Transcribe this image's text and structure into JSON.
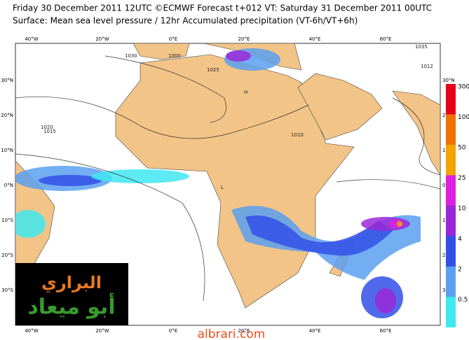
{
  "header": {
    "line1": "Friday 30 December 2011 12UTC ©ECMWF Forecast t+012 VT: Saturday 31 December 2011 00UTC",
    "line2": "Surface: Mean sea level pressure / 12hr Accumulated precipitation (VT-6h/VT+6h)"
  },
  "map": {
    "lon_labels": [
      "40°W",
      "20°W",
      "0°E",
      "20°E",
      "40°E",
      "60°E"
    ],
    "lat_labels": [
      "30°N",
      "20°N",
      "10°N",
      "0°N",
      "10°S",
      "20°S",
      "30°S"
    ],
    "isobar_labels": [
      "1015",
      "1020",
      "1010",
      "1000",
      "1025",
      "1030",
      "1035",
      "1012",
      "H",
      "L"
    ]
  },
  "colorbar": {
    "levels": [
      300,
      100,
      50,
      25,
      10,
      4,
      2,
      0.5
    ],
    "colors": [
      "#e8001a",
      "#f07000",
      "#f4a300",
      "#e020e0",
      "#9a28d8",
      "#3250e8",
      "#5aa0f0",
      "#40e8f0"
    ]
  },
  "watermark": {
    "name": "البراري",
    "alias": "أبو ميعاد",
    "site": "albrari.com"
  }
}
